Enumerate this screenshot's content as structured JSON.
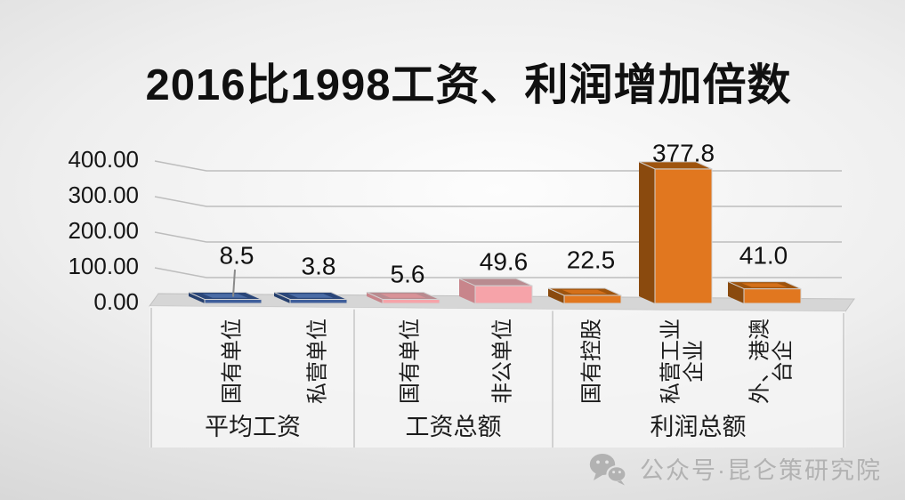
{
  "title": "2016比1998工资、利润增加倍数",
  "watermark": {
    "icon": "wechat-icon",
    "label": "公众号·昆仑策研究院",
    "color": "#b2b2b2"
  },
  "chart_data": {
    "type": "bar",
    "projection": "3d",
    "title": "2016比1998工资、利润增加倍数",
    "ylim": [
      0,
      400
    ],
    "grid": true,
    "legend": false,
    "y_ticks": [
      {
        "value": 400,
        "label": "400.00"
      },
      {
        "value": 300,
        "label": "300.00"
      },
      {
        "value": 200,
        "label": "200.00"
      },
      {
        "value": 100,
        "label": "100.00"
      },
      {
        "value": 0,
        "label": "0.00"
      }
    ],
    "groups": [
      {
        "label": "平均工资",
        "palette": "blue",
        "series": [
          {
            "category": "国有单位",
            "value": 8.5,
            "data_label": "8.5",
            "leader_line": true
          },
          {
            "category": "私营单位",
            "value": 3.8,
            "data_label": "3.8"
          }
        ]
      },
      {
        "label": "工资总额",
        "palette": "pink",
        "series": [
          {
            "category": "国有单位",
            "value": 5.6,
            "data_label": "5.6"
          },
          {
            "category": "非公单位",
            "value": 49.6,
            "data_label": "49.6"
          }
        ]
      },
      {
        "label": "利润总额",
        "palette": "orange",
        "series": [
          {
            "category": "国有控股",
            "value": 22.5,
            "data_label": "22.5"
          },
          {
            "category": "私营工业\n企业",
            "value": 377.8,
            "data_label": "377.8"
          },
          {
            "category": "外、港澳\n台企",
            "value": 41.0,
            "data_label": "41.0"
          }
        ]
      }
    ],
    "palettes": {
      "blue": {
        "front": "#3f5f9b",
        "side": "#253f6e",
        "top": "#2a4679",
        "inner": "#4a6ca6"
      },
      "pink": {
        "front": "#f6a3a9",
        "side": "#c8858b",
        "top": "#b98b90",
        "inner": "#d99398"
      },
      "orange": {
        "front": "#e1771f",
        "side": "#8a4a0e",
        "top": "#9e540e",
        "inner": "#d4701a"
      }
    },
    "style": {
      "grid_color": "#bdbdbd",
      "axis_text_color": "#161616",
      "data_label_color": "#111111",
      "floor_color": "#d6d6d6",
      "panel_color": "#f5f5f5",
      "panel_line_color": "#c6c6c6",
      "bar_outline_color": "#d2d2d2"
    }
  }
}
